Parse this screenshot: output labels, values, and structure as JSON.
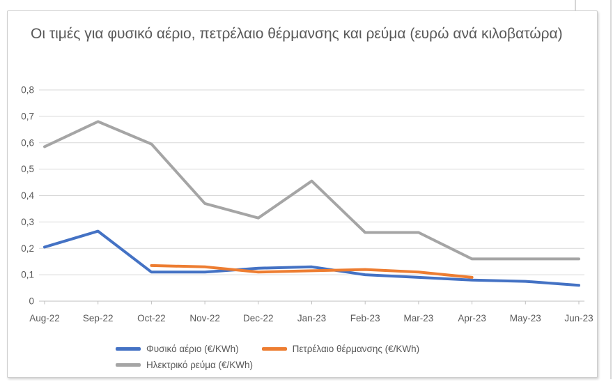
{
  "chart_data": {
    "type": "line",
    "title": "Οι τιμές για φυσικό αέριο, πετρέλαιο θέρμανσης και ρεύμα (ευρώ ανά κιλοβατώρα)",
    "categories": [
      "Aug-22",
      "Sep-22",
      "Oct-22",
      "Nov-22",
      "Dec-22",
      "Jan-23",
      "Feb-23",
      "Mar-23",
      "Apr-23",
      "May-23",
      "Jun-23"
    ],
    "series": [
      {
        "name": "Φυσικό αέριο (€/KWh)",
        "slug": "natural-gas",
        "color": "#4472C4",
        "values": [
          0.205,
          0.265,
          0.11,
          0.11,
          0.125,
          0.13,
          0.1,
          0.09,
          0.08,
          0.075,
          0.06
        ]
      },
      {
        "name": "Πετρέλαιο θέρμανσης (€/KWh)",
        "slug": "heating-oil",
        "color": "#ED7D31",
        "values": [
          null,
          null,
          0.135,
          0.13,
          0.11,
          0.115,
          0.12,
          0.11,
          0.09,
          null,
          null
        ]
      },
      {
        "name": "Ηλεκτρικό ρεύμα (€/KWh)",
        "slug": "electricity",
        "color": "#A5A5A5",
        "values": [
          0.585,
          0.68,
          0.595,
          0.37,
          0.315,
          0.455,
          0.26,
          0.26,
          0.16,
          0.16,
          0.16
        ]
      }
    ],
    "y_axis": {
      "min": 0,
      "max": 0.8,
      "step": 0.1,
      "tick_labels": [
        "0",
        "0,1",
        "0,2",
        "0,3",
        "0,4",
        "0,5",
        "0,6",
        "0,7",
        "0,8"
      ]
    },
    "x_axis": {
      "tick_labels": [
        "Aug-22",
        "Sep-22",
        "Oct-22",
        "Nov-22",
        "Dec-22",
        "Jan-23",
        "Feb-23",
        "Mar-23",
        "Apr-23",
        "May-23",
        "Jun-23"
      ]
    },
    "grid": true,
    "legend_position": "bottom",
    "colors": {
      "axis_text": "#595959",
      "title_text": "#595959",
      "gridline": "#D9D9D9",
      "axis_line": "#BFBFBF"
    }
  }
}
